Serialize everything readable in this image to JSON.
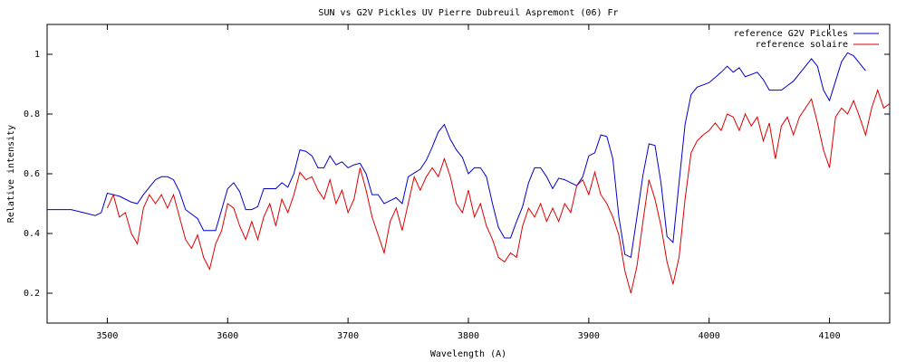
{
  "chart_data": {
    "type": "line",
    "title": "SUN vs G2V Pickles  UV    Pierre Dubreuil  Aspremont (06) Fr",
    "x_label": "Wavelength (A)",
    "y_label": "Relative intensity",
    "xlim": [
      3450,
      4150
    ],
    "ylim": [
      0.1,
      1.1
    ],
    "xticks": [
      3500,
      3600,
      3700,
      3800,
      3900,
      4000,
      4100
    ],
    "yticks": [
      0.2,
      0.4,
      0.6,
      0.8,
      1
    ],
    "legend": "top right",
    "series": [
      {
        "name": "reference G2V Pickles",
        "color": "#0000cc",
        "x": [
          3450,
          3460,
          3470,
          3480,
          3490,
          3495,
          3500,
          3510,
          3520,
          3525,
          3530,
          3540,
          3545,
          3550,
          3555,
          3560,
          3565,
          3575,
          3580,
          3590,
          3595,
          3600,
          3605,
          3610,
          3615,
          3620,
          3625,
          3630,
          3640,
          3645,
          3650,
          3655,
          3660,
          3665,
          3670,
          3675,
          3680,
          3685,
          3690,
          3695,
          3700,
          3705,
          3710,
          3715,
          3720,
          3725,
          3730,
          3735,
          3740,
          3745,
          3750,
          3760,
          3765,
          3770,
          3775,
          3780,
          3785,
          3790,
          3795,
          3800,
          3805,
          3810,
          3815,
          3820,
          3825,
          3830,
          3835,
          3840,
          3845,
          3850,
          3855,
          3860,
          3865,
          3870,
          3875,
          3880,
          3890,
          3895,
          3900,
          3905,
          3910,
          3915,
          3920,
          3925,
          3930,
          3935,
          3940,
          3945,
          3950,
          3955,
          3960,
          3965,
          3970,
          3975,
          3980,
          3985,
          3990,
          4000,
          4010,
          4015,
          4020,
          4025,
          4030,
          4040,
          4045,
          4050,
          4060,
          4065,
          4070,
          4080,
          4085,
          4090,
          4095,
          4100,
          4105,
          4110,
          4115,
          4120,
          4125,
          4130
        ],
        "values": [
          0.48,
          0.48,
          0.48,
          0.47,
          0.46,
          0.47,
          0.535,
          0.525,
          0.505,
          0.5,
          0.53,
          0.58,
          0.59,
          0.59,
          0.58,
          0.54,
          0.48,
          0.45,
          0.41,
          0.41,
          0.48,
          0.55,
          0.57,
          0.54,
          0.48,
          0.48,
          0.49,
          0.55,
          0.55,
          0.57,
          0.555,
          0.6,
          0.68,
          0.675,
          0.66,
          0.62,
          0.62,
          0.66,
          0.63,
          0.64,
          0.62,
          0.63,
          0.635,
          0.6,
          0.53,
          0.53,
          0.5,
          0.51,
          0.52,
          0.5,
          0.59,
          0.615,
          0.645,
          0.69,
          0.74,
          0.765,
          0.715,
          0.68,
          0.655,
          0.6,
          0.62,
          0.62,
          0.59,
          0.5,
          0.42,
          0.385,
          0.385,
          0.44,
          0.49,
          0.57,
          0.62,
          0.62,
          0.59,
          0.55,
          0.585,
          0.58,
          0.56,
          0.59,
          0.66,
          0.67,
          0.73,
          0.725,
          0.65,
          0.455,
          0.33,
          0.32,
          0.455,
          0.595,
          0.7,
          0.695,
          0.57,
          0.39,
          0.37,
          0.57,
          0.765,
          0.865,
          0.89,
          0.905,
          0.94,
          0.96,
          0.94,
          0.955,
          0.925,
          0.94,
          0.915,
          0.88,
          0.88,
          0.895,
          0.91,
          0.96,
          0.985,
          0.96,
          0.88,
          0.845,
          0.91,
          0.975,
          1.005,
          0.995,
          0.97,
          0.945
        ]
      },
      {
        "name": "reference solaire",
        "color": "#dd0000",
        "x": [
          3500,
          3505,
          3510,
          3515,
          3520,
          3525,
          3530,
          3535,
          3540,
          3545,
          3550,
          3555,
          3560,
          3565,
          3570,
          3575,
          3580,
          3585,
          3590,
          3595,
          3600,
          3605,
          3610,
          3615,
          3620,
          3625,
          3630,
          3635,
          3640,
          3645,
          3650,
          3655,
          3660,
          3665,
          3670,
          3675,
          3680,
          3685,
          3690,
          3695,
          3700,
          3705,
          3710,
          3715,
          3720,
          3725,
          3730,
          3735,
          3740,
          3745,
          3750,
          3755,
          3760,
          3765,
          3770,
          3775,
          3780,
          3785,
          3790,
          3795,
          3800,
          3805,
          3810,
          3815,
          3820,
          3825,
          3830,
          3835,
          3840,
          3845,
          3850,
          3855,
          3860,
          3865,
          3870,
          3875,
          3880,
          3885,
          3890,
          3895,
          3900,
          3905,
          3910,
          3915,
          3920,
          3925,
          3930,
          3935,
          3940,
          3945,
          3950,
          3955,
          3960,
          3965,
          3970,
          3975,
          3980,
          3985,
          3990,
          3995,
          4000,
          4005,
          4010,
          4015,
          4020,
          4025,
          4030,
          4035,
          4040,
          4045,
          4050,
          4055,
          4060,
          4065,
          4070,
          4075,
          4080,
          4085,
          4090,
          4095,
          4100,
          4105,
          4110,
          4115,
          4120,
          4125,
          4130,
          4135,
          4140,
          4145,
          4150
        ],
        "values": [
          0.485,
          0.53,
          0.455,
          0.47,
          0.4,
          0.365,
          0.485,
          0.53,
          0.5,
          0.53,
          0.485,
          0.53,
          0.455,
          0.38,
          0.35,
          0.395,
          0.32,
          0.28,
          0.365,
          0.41,
          0.5,
          0.485,
          0.425,
          0.38,
          0.44,
          0.38,
          0.455,
          0.5,
          0.425,
          0.515,
          0.47,
          0.53,
          0.605,
          0.58,
          0.59,
          0.545,
          0.515,
          0.58,
          0.5,
          0.545,
          0.47,
          0.515,
          0.62,
          0.545,
          0.455,
          0.395,
          0.335,
          0.44,
          0.485,
          0.41,
          0.5,
          0.59,
          0.545,
          0.59,
          0.62,
          0.59,
          0.65,
          0.59,
          0.5,
          0.47,
          0.545,
          0.455,
          0.5,
          0.425,
          0.38,
          0.32,
          0.305,
          0.335,
          0.32,
          0.425,
          0.485,
          0.455,
          0.5,
          0.44,
          0.485,
          0.44,
          0.5,
          0.47,
          0.56,
          0.58,
          0.53,
          0.605,
          0.53,
          0.5,
          0.455,
          0.395,
          0.275,
          0.2,
          0.29,
          0.44,
          0.58,
          0.515,
          0.425,
          0.305,
          0.23,
          0.32,
          0.515,
          0.67,
          0.71,
          0.73,
          0.745,
          0.77,
          0.745,
          0.8,
          0.79,
          0.745,
          0.8,
          0.76,
          0.79,
          0.71,
          0.77,
          0.65,
          0.76,
          0.79,
          0.73,
          0.79,
          0.82,
          0.85,
          0.77,
          0.68,
          0.62,
          0.79,
          0.82,
          0.8,
          0.845,
          0.79,
          0.73,
          0.82,
          0.88,
          0.82,
          0.835
        ]
      }
    ]
  }
}
